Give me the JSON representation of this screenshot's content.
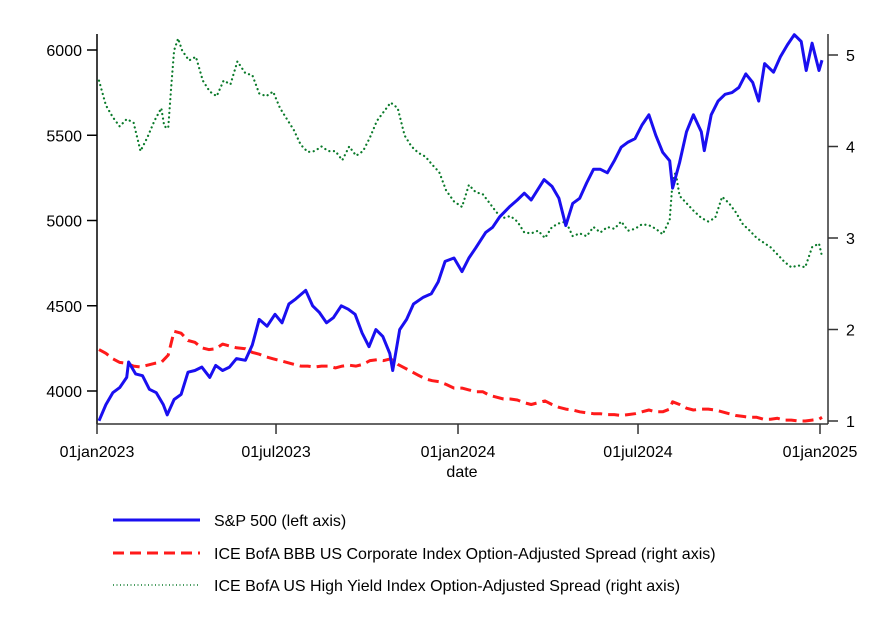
{
  "chart_data": {
    "type": "line",
    "title": "",
    "xlabel": "date",
    "ylabel_left": "",
    "ylabel_right": "",
    "x_ticks": [
      "01jan2023",
      "01jul2023",
      "01jan2024",
      "01jul2024",
      "01jan2025"
    ],
    "x_tick_dates": [
      "2023-01-01",
      "2023-07-01",
      "2024-01-01",
      "2024-07-01",
      "2025-01-01"
    ],
    "xlim": [
      "2023-01-01",
      "2025-01-07"
    ],
    "y_left_ticks": [
      "6000",
      "5500",
      "5000",
      "4500",
      "4000"
    ],
    "y_left_tick_values": [
      6000,
      5500,
      5000,
      4500,
      4000
    ],
    "ylim_left": [
      3830,
      6100
    ],
    "y_right_ticks": [
      "5",
      "4",
      "3",
      "2",
      "1"
    ],
    "y_right_tick_values": [
      5,
      4,
      3,
      2,
      1
    ],
    "ylim_right": [
      0.98,
      5.2
    ],
    "grid": false,
    "legend_position": "bottom",
    "series": [
      {
        "name": "S&P 500 (left axis)",
        "axis": "left",
        "color": "#1a0ff0",
        "style": "solid",
        "x": [
          "2023-01-03",
          "2023-01-10",
          "2023-01-17",
          "2023-01-24",
          "2023-01-31",
          "2023-02-02",
          "2023-02-09",
          "2023-02-16",
          "2023-02-23",
          "2023-03-02",
          "2023-03-09",
          "2023-03-13",
          "2023-03-20",
          "2023-03-27",
          "2023-04-03",
          "2023-04-10",
          "2023-04-17",
          "2023-04-25",
          "2023-05-01",
          "2023-05-08",
          "2023-05-15",
          "2023-05-22",
          "2023-05-31",
          "2023-06-07",
          "2023-06-14",
          "2023-06-22",
          "2023-06-30",
          "2023-07-07",
          "2023-07-14",
          "2023-07-21",
          "2023-07-31",
          "2023-08-07",
          "2023-08-14",
          "2023-08-21",
          "2023-08-28",
          "2023-09-05",
          "2023-09-12",
          "2023-09-19",
          "2023-09-26",
          "2023-10-03",
          "2023-10-10",
          "2023-10-17",
          "2023-10-24",
          "2023-10-27",
          "2023-11-03",
          "2023-11-10",
          "2023-11-17",
          "2023-11-27",
          "2023-12-05",
          "2023-12-12",
          "2023-12-19",
          "2023-12-28",
          "2024-01-05",
          "2024-01-12",
          "2024-01-19",
          "2024-01-29",
          "2024-02-05",
          "2024-02-12",
          "2024-02-22",
          "2024-03-01",
          "2024-03-08",
          "2024-03-15",
          "2024-03-28",
          "2024-04-05",
          "2024-04-12",
          "2024-04-19",
          "2024-04-26",
          "2024-05-03",
          "2024-05-10",
          "2024-05-17",
          "2024-05-24",
          "2024-05-31",
          "2024-06-07",
          "2024-06-14",
          "2024-06-21",
          "2024-06-28",
          "2024-07-05",
          "2024-07-12",
          "2024-07-19",
          "2024-07-26",
          "2024-08-02",
          "2024-08-05",
          "2024-08-12",
          "2024-08-19",
          "2024-08-26",
          "2024-09-03",
          "2024-09-06",
          "2024-09-13",
          "2024-09-20",
          "2024-09-27",
          "2024-10-04",
          "2024-10-11",
          "2024-10-18",
          "2024-10-25",
          "2024-10-31",
          "2024-11-06",
          "2024-11-15",
          "2024-11-22",
          "2024-11-29",
          "2024-12-06",
          "2024-12-13",
          "2024-12-18",
          "2024-12-24",
          "2024-12-31",
          "2025-01-03"
        ],
        "values": [
          3825,
          3920,
          3990,
          4020,
          4080,
          4170,
          4100,
          4090,
          4010,
          3990,
          3920,
          3860,
          3950,
          3980,
          4110,
          4120,
          4140,
          4080,
          4150,
          4120,
          4140,
          4190,
          4180,
          4270,
          4420,
          4380,
          4450,
          4400,
          4510,
          4540,
          4590,
          4500,
          4460,
          4400,
          4430,
          4500,
          4480,
          4450,
          4340,
          4260,
          4360,
          4320,
          4220,
          4120,
          4360,
          4420,
          4510,
          4550,
          4570,
          4640,
          4760,
          4780,
          4700,
          4780,
          4840,
          4930,
          4960,
          5020,
          5080,
          5120,
          5160,
          5120,
          5240,
          5200,
          5130,
          4970,
          5100,
          5130,
          5220,
          5300,
          5300,
          5280,
          5350,
          5430,
          5460,
          5480,
          5560,
          5620,
          5500,
          5400,
          5350,
          5190,
          5340,
          5520,
          5620,
          5520,
          5410,
          5620,
          5700,
          5740,
          5750,
          5780,
          5860,
          5810,
          5700,
          5920,
          5870,
          5960,
          6030,
          6090,
          6050,
          5880,
          6040,
          5880,
          5940
        ]
      },
      {
        "name": "ICE BofA BBB US Corporate Index Option-Adjusted Spread (right axis)",
        "axis": "right",
        "color": "#ff1a1a",
        "style": "dashed",
        "x": [
          "2023-01-03",
          "2023-01-10",
          "2023-01-17",
          "2023-01-24",
          "2023-01-31",
          "2023-02-07",
          "2023-02-14",
          "2023-02-21",
          "2023-02-28",
          "2023-03-07",
          "2023-03-14",
          "2023-03-20",
          "2023-03-27",
          "2023-04-03",
          "2023-04-10",
          "2023-04-17",
          "2023-04-24",
          "2023-05-01",
          "2023-05-08",
          "2023-05-15",
          "2023-05-22",
          "2023-05-31",
          "2023-06-07",
          "2023-06-14",
          "2023-06-21",
          "2023-06-28",
          "2023-07-05",
          "2023-07-12",
          "2023-07-19",
          "2023-07-26",
          "2023-08-02",
          "2023-08-09",
          "2023-08-16",
          "2023-08-23",
          "2023-08-30",
          "2023-09-06",
          "2023-09-13",
          "2023-09-20",
          "2023-09-27",
          "2023-10-04",
          "2023-10-11",
          "2023-10-18",
          "2023-10-25",
          "2023-11-01",
          "2023-11-08",
          "2023-11-15",
          "2023-11-22",
          "2023-11-29",
          "2023-12-06",
          "2023-12-13",
          "2023-12-20",
          "2023-12-28",
          "2024-01-05",
          "2024-01-12",
          "2024-01-19",
          "2024-01-26",
          "2024-02-02",
          "2024-02-09",
          "2024-02-16",
          "2024-02-23",
          "2024-03-01",
          "2024-03-08",
          "2024-03-15",
          "2024-03-22",
          "2024-03-29",
          "2024-04-05",
          "2024-04-12",
          "2024-04-19",
          "2024-04-26",
          "2024-05-03",
          "2024-05-10",
          "2024-05-17",
          "2024-05-24",
          "2024-05-31",
          "2024-06-07",
          "2024-06-14",
          "2024-06-21",
          "2024-06-28",
          "2024-07-05",
          "2024-07-12",
          "2024-07-19",
          "2024-07-26",
          "2024-08-02",
          "2024-08-05",
          "2024-08-12",
          "2024-08-19",
          "2024-08-26",
          "2024-09-03",
          "2024-09-10",
          "2024-09-17",
          "2024-09-24",
          "2024-10-01",
          "2024-10-08",
          "2024-10-15",
          "2024-10-22",
          "2024-10-29",
          "2024-11-05",
          "2024-11-12",
          "2024-11-19",
          "2024-11-26",
          "2024-12-03",
          "2024-12-10",
          "2024-12-17",
          "2024-12-24",
          "2024-12-31",
          "2025-01-03"
        ],
        "values": [
          1.78,
          1.74,
          1.68,
          1.64,
          1.63,
          1.6,
          1.59,
          1.61,
          1.63,
          1.64,
          1.72,
          1.98,
          1.96,
          1.88,
          1.86,
          1.8,
          1.78,
          1.79,
          1.84,
          1.82,
          1.8,
          1.79,
          1.75,
          1.73,
          1.7,
          1.68,
          1.66,
          1.64,
          1.62,
          1.6,
          1.6,
          1.59,
          1.6,
          1.6,
          1.58,
          1.6,
          1.61,
          1.6,
          1.62,
          1.66,
          1.67,
          1.66,
          1.68,
          1.62,
          1.58,
          1.54,
          1.5,
          1.46,
          1.44,
          1.43,
          1.4,
          1.36,
          1.36,
          1.34,
          1.32,
          1.32,
          1.28,
          1.26,
          1.24,
          1.24,
          1.23,
          1.2,
          1.18,
          1.2,
          1.22,
          1.18,
          1.15,
          1.13,
          1.12,
          1.1,
          1.09,
          1.08,
          1.08,
          1.07,
          1.07,
          1.06,
          1.07,
          1.08,
          1.1,
          1.12,
          1.1,
          1.1,
          1.13,
          1.21,
          1.18,
          1.14,
          1.12,
          1.13,
          1.13,
          1.12,
          1.1,
          1.08,
          1.06,
          1.05,
          1.04,
          1.04,
          1.02,
          1.02,
          1.03,
          1.01,
          1.01,
          1.0,
          1.0,
          1.01,
          1.02,
          1.04
        ]
      },
      {
        "name": "ICE BofA US High Yield Index Option-Adjusted Spread (right axis)",
        "axis": "right",
        "color": "#0a7a2a",
        "style": "dotted",
        "x": [
          "2023-01-03",
          "2023-01-10",
          "2023-01-17",
          "2023-01-24",
          "2023-01-31",
          "2023-02-07",
          "2023-02-14",
          "2023-02-21",
          "2023-02-28",
          "2023-03-07",
          "2023-03-10",
          "2023-03-14",
          "2023-03-17",
          "2023-03-20",
          "2023-03-24",
          "2023-03-28",
          "2023-04-04",
          "2023-04-11",
          "2023-04-18",
          "2023-04-25",
          "2023-05-02",
          "2023-05-09",
          "2023-05-16",
          "2023-05-23",
          "2023-05-31",
          "2023-06-07",
          "2023-06-14",
          "2023-06-21",
          "2023-06-28",
          "2023-07-05",
          "2023-07-12",
          "2023-07-19",
          "2023-07-26",
          "2023-08-02",
          "2023-08-09",
          "2023-08-16",
          "2023-08-23",
          "2023-08-30",
          "2023-09-06",
          "2023-09-13",
          "2023-09-20",
          "2023-09-27",
          "2023-10-04",
          "2023-10-11",
          "2023-10-18",
          "2023-10-25",
          "2023-11-01",
          "2023-11-08",
          "2023-11-15",
          "2023-11-22",
          "2023-11-29",
          "2023-12-06",
          "2023-12-13",
          "2023-12-20",
          "2023-12-28",
          "2024-01-05",
          "2024-01-12",
          "2024-01-19",
          "2024-01-26",
          "2024-02-02",
          "2024-02-09",
          "2024-02-16",
          "2024-02-23",
          "2024-03-01",
          "2024-03-08",
          "2024-03-15",
          "2024-03-22",
          "2024-03-29",
          "2024-04-05",
          "2024-04-12",
          "2024-04-19",
          "2024-04-26",
          "2024-05-03",
          "2024-05-10",
          "2024-05-17",
          "2024-05-24",
          "2024-05-31",
          "2024-06-07",
          "2024-06-14",
          "2024-06-21",
          "2024-06-28",
          "2024-07-05",
          "2024-07-12",
          "2024-07-19",
          "2024-07-26",
          "2024-08-02",
          "2024-08-05",
          "2024-08-08",
          "2024-08-12",
          "2024-08-19",
          "2024-08-26",
          "2024-09-03",
          "2024-09-10",
          "2024-09-17",
          "2024-09-24",
          "2024-10-01",
          "2024-10-08",
          "2024-10-15",
          "2024-10-22",
          "2024-10-29",
          "2024-11-05",
          "2024-11-12",
          "2024-11-19",
          "2024-11-26",
          "2024-12-03",
          "2024-12-10",
          "2024-12-17",
          "2024-12-24",
          "2024-12-31",
          "2025-01-03"
        ],
        "values": [
          4.72,
          4.45,
          4.32,
          4.22,
          4.3,
          4.26,
          3.95,
          4.1,
          4.28,
          4.42,
          4.22,
          4.2,
          4.65,
          5.05,
          5.18,
          5.05,
          4.94,
          4.98,
          4.72,
          4.6,
          4.55,
          4.72,
          4.68,
          4.93,
          4.8,
          4.78,
          4.58,
          4.55,
          4.6,
          4.42,
          4.3,
          4.18,
          4.02,
          3.94,
          3.95,
          4.0,
          3.95,
          3.95,
          3.85,
          4.0,
          3.9,
          3.95,
          4.1,
          4.28,
          4.38,
          4.48,
          4.42,
          4.12,
          4.0,
          3.93,
          3.89,
          3.8,
          3.72,
          3.52,
          3.4,
          3.34,
          3.58,
          3.5,
          3.48,
          3.38,
          3.28,
          3.22,
          3.24,
          3.18,
          3.06,
          3.05,
          3.08,
          3.0,
          3.12,
          3.16,
          3.18,
          3.02,
          3.05,
          3.02,
          3.12,
          3.06,
          3.12,
          3.1,
          3.18,
          3.08,
          3.1,
          3.15,
          3.14,
          3.1,
          3.04,
          3.2,
          3.62,
          3.72,
          3.46,
          3.38,
          3.3,
          3.22,
          3.18,
          3.22,
          3.45,
          3.38,
          3.28,
          3.15,
          3.08,
          3.0,
          2.95,
          2.9,
          2.82,
          2.74,
          2.68,
          2.7,
          2.68,
          2.9,
          2.94,
          2.8
        ]
      }
    ]
  }
}
